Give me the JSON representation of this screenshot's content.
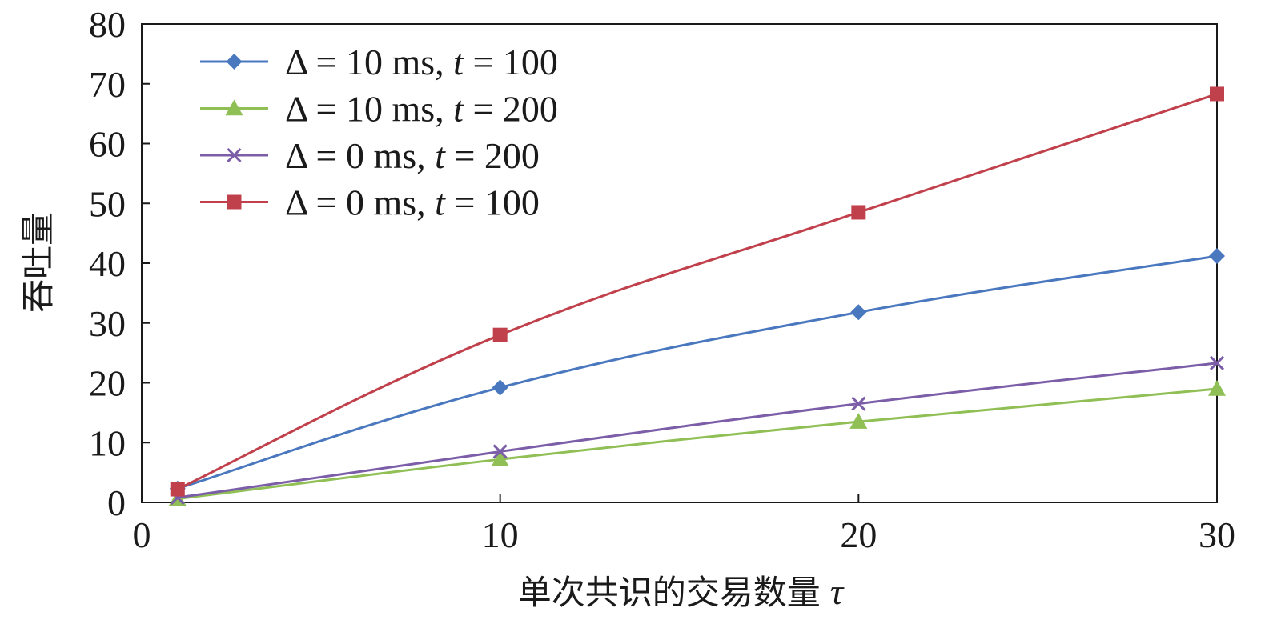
{
  "chart_data": {
    "type": "line",
    "x": [
      1,
      10,
      20,
      30
    ],
    "xlim": [
      0,
      30
    ],
    "ylim": [
      0,
      80
    ],
    "xticks": [
      0,
      10,
      20,
      30
    ],
    "yticks": [
      0,
      10,
      20,
      30,
      40,
      50,
      60,
      70,
      80
    ],
    "xlabel": "单次共识的交易数量",
    "xlabel_symbol": "τ",
    "ylabel": "吞吐量",
    "grid": false,
    "legend_position": "top-left",
    "series": [
      {
        "name": "Δ = 10 ms, t = 100",
        "name_parts": [
          "Δ = 10 ms, ",
          "t",
          " = 100"
        ],
        "color": "#4a78bf",
        "marker": "diamond",
        "values": [
          2.3,
          19.2,
          31.8,
          41.2
        ]
      },
      {
        "name": "Δ = 10 ms, t = 200",
        "name_parts": [
          "Δ = 10 ms, ",
          "t",
          " = 200"
        ],
        "color": "#8fbf55",
        "marker": "triangle",
        "values": [
          0.6,
          7.2,
          13.5,
          19.0
        ]
      },
      {
        "name": "Δ = 0 ms, t = 200",
        "name_parts": [
          "Δ = 0 ms, ",
          "t",
          " = 200"
        ],
        "color": "#7b5ea7",
        "marker": "x",
        "values": [
          0.8,
          8.5,
          16.5,
          23.3
        ]
      },
      {
        "name": "Δ = 0 ms, t = 100",
        "name_parts": [
          "Δ = 0 ms, ",
          "t",
          " = 100"
        ],
        "color": "#c0404b",
        "marker": "square",
        "values": [
          2.2,
          28.0,
          48.5,
          68.3
        ]
      }
    ]
  }
}
